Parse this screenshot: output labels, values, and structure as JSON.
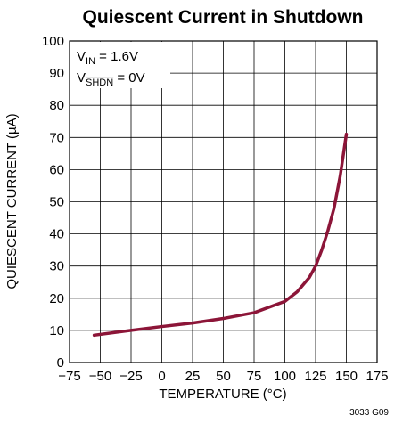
{
  "chart_data": {
    "type": "line",
    "title": "Quiescent Current in Shutdown",
    "xlabel": "TEMPERATURE (°C)",
    "ylabel": "QUIESCENT CURRENT (µA)",
    "footnote": "3033 G09",
    "annotations": [
      {
        "base": "V",
        "sub": "IN",
        "rest": " = 1.6V"
      },
      {
        "base": "V",
        "sub": "SHDN",
        "rest": " = 0V",
        "overline": true
      }
    ],
    "xlim": [
      -75,
      175
    ],
    "xticks": [
      {
        "value": -75,
        "label": "−75"
      },
      {
        "value": -50,
        "label": "−50"
      },
      {
        "value": -25,
        "label": "−25"
      },
      0,
      25,
      50,
      75,
      100,
      125,
      150,
      175
    ],
    "ylim": [
      0,
      100
    ],
    "yticks": [
      0,
      10,
      20,
      30,
      40,
      50,
      60,
      70,
      80,
      90,
      100
    ],
    "grid": true,
    "series": [
      {
        "color": "#8c1538",
        "x": [
          -55,
          -25,
          0,
          25,
          50,
          75,
          100,
          110,
          120,
          125,
          130,
          135,
          140,
          145,
          150
        ],
        "values": [
          8.5,
          10,
          11.2,
          12.3,
          13.7,
          15.5,
          19,
          22,
          26.5,
          30,
          35,
          41,
          48,
          58,
          71
        ]
      }
    ]
  }
}
